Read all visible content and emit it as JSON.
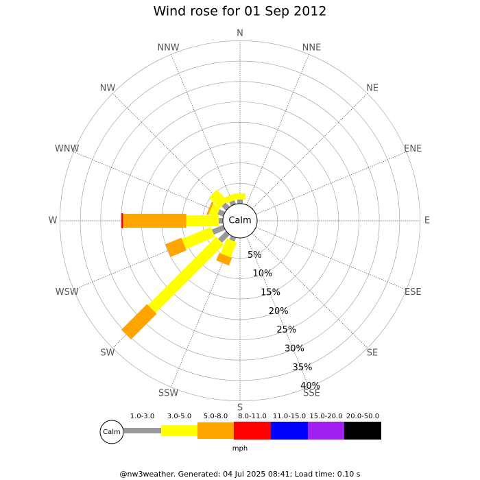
{
  "chart_data": {
    "type": "wind-rose",
    "title": "Wind rose for 01 Sep 2012",
    "categories": [
      "N",
      "NNE",
      "NE",
      "ENE",
      "E",
      "ESE",
      "SE",
      "SSE",
      "S",
      "SSW",
      "SW",
      "WSW",
      "W",
      "WNW",
      "NW",
      "NNW"
    ],
    "series": [
      {
        "name": "1.0-3.0",
        "color": "#999999",
        "values": [
          1,
          0,
          0,
          0,
          0,
          0,
          0,
          0,
          0,
          1,
          2.7,
          3,
          1,
          1.5,
          1.5,
          1
        ]
      },
      {
        "name": "3.0-5.0",
        "color": "#ffff00",
        "values": [
          1.5,
          0,
          0,
          0,
          0,
          0,
          0,
          0,
          0,
          4,
          23.7,
          7.7,
          8,
          2,
          3.7,
          1.5
        ]
      },
      {
        "name": "5.0-8.0",
        "color": "#ffa500",
        "values": [
          0,
          0,
          0,
          0,
          0,
          0,
          0,
          0,
          0,
          2,
          8.9,
          4.2,
          15.5,
          0.5,
          0,
          0
        ]
      },
      {
        "name": "8.0-11.0",
        "color": "#ff0000",
        "values": [
          0,
          0,
          0,
          0,
          0,
          0,
          0,
          0,
          0,
          0,
          0,
          0,
          0.4,
          0,
          0,
          0
        ]
      },
      {
        "name": "11.0-15.0",
        "color": "#0000ff",
        "values": [
          0,
          0,
          0,
          0,
          0,
          0,
          0,
          0,
          0,
          0,
          0,
          0,
          0,
          0,
          0,
          0
        ]
      },
      {
        "name": "15.0-20.0",
        "color": "#a020f0",
        "values": [
          0,
          0,
          0,
          0,
          0,
          0,
          0,
          0,
          0,
          0,
          0,
          0,
          0,
          0,
          0,
          0
        ]
      },
      {
        "name": "20.0-50.0",
        "color": "#000000",
        "values": [
          0,
          0,
          0,
          0,
          0,
          0,
          0,
          0,
          0,
          0,
          0,
          0,
          0,
          0,
          0,
          0
        ]
      }
    ],
    "rlim": [
      0,
      40
    ],
    "rticks": [
      {
        "value": 5,
        "label": "5%"
      },
      {
        "value": 10,
        "label": "10%"
      },
      {
        "value": 15,
        "label": "15%"
      },
      {
        "value": 20,
        "label": "20%"
      },
      {
        "value": 25,
        "label": "25%"
      },
      {
        "value": 30,
        "label": "30%"
      },
      {
        "value": 35,
        "label": "35%"
      },
      {
        "value": 40,
        "label": "40%"
      }
    ],
    "calm_label": "Calm",
    "units": "mph",
    "footer": "@nw3weather. Generated: 04 Jul 2025 08:41; Load time: 0.10 s"
  }
}
